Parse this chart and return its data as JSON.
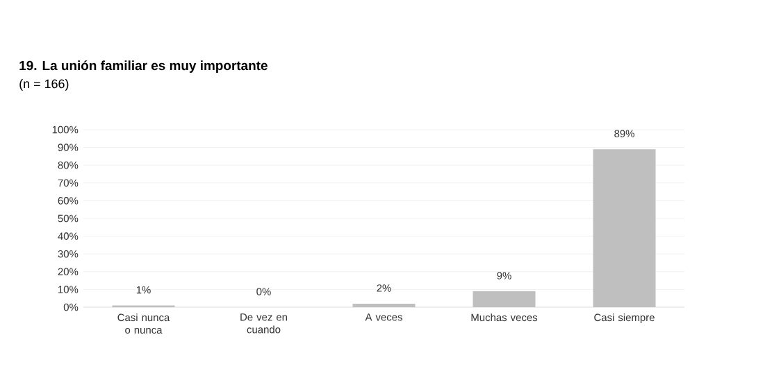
{
  "chart_data": {
    "type": "bar",
    "title": "19. La unión familiar es muy importante",
    "subtitle": "(n = 166)",
    "categories": [
      "Casi nunca o nunca",
      "De vez en cuando",
      "A veces",
      "Muchas veces",
      "Casi siempre"
    ],
    "values": [
      1,
      0,
      2,
      9,
      89
    ],
    "value_labels": [
      "1%",
      "0%",
      "2%",
      "9%",
      "89%"
    ],
    "color": "#bfbfbf",
    "ylim": [
      0,
      100
    ],
    "yticks": [
      {
        "value": 0,
        "label": "0%"
      },
      {
        "value": 10,
        "label": "10%"
      },
      {
        "value": 20,
        "label": "20%"
      },
      {
        "value": 30,
        "label": "30%"
      },
      {
        "value": 40,
        "label": "40%"
      },
      {
        "value": 50,
        "label": "50%"
      },
      {
        "value": 60,
        "label": "60%"
      },
      {
        "value": 70,
        "label": "70%"
      },
      {
        "value": 80,
        "label": "80%"
      },
      {
        "value": 90,
        "label": "90%"
      },
      {
        "value": 100,
        "label": "100%"
      }
    ],
    "grid": "y"
  }
}
